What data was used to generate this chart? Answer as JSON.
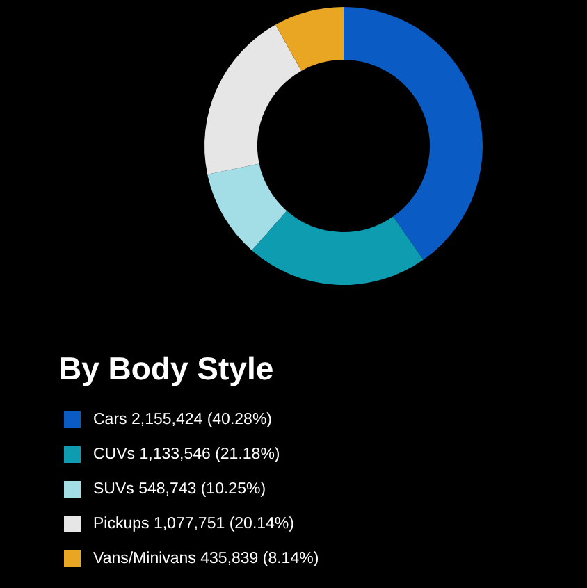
{
  "chart_data": {
    "type": "donut",
    "legend_title": "By Body Style",
    "legend": "bottom",
    "categories": [
      "Cars",
      "CUVs",
      "SUVs",
      "Pickups",
      "Vans/Minivans"
    ],
    "values": [
      2155424,
      1133546,
      548743,
      1077751,
      435839
    ],
    "value_labels": [
      "2,155,424 (40.28%)",
      "1,133,546 (21.18%)",
      "548,743 (10.25%)",
      "1,077,751 (20.14%)",
      "435,839 (8.14%)"
    ],
    "colors": [
      "#0a5bc4",
      "#0d9cb0",
      "#a3dde6",
      "#e6e6e6",
      "#e8a623"
    ]
  }
}
